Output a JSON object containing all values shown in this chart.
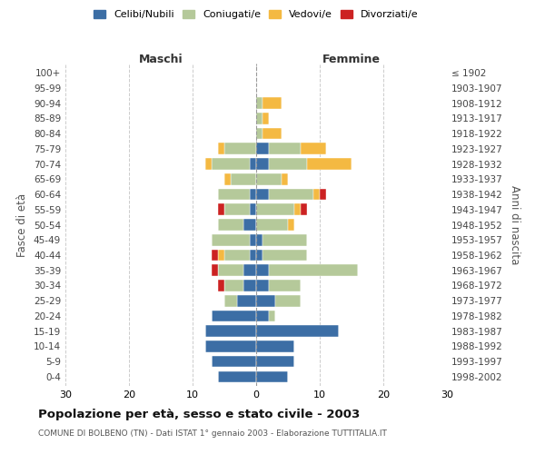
{
  "age_groups": [
    "0-4",
    "5-9",
    "10-14",
    "15-19",
    "20-24",
    "25-29",
    "30-34",
    "35-39",
    "40-44",
    "45-49",
    "50-54",
    "55-59",
    "60-64",
    "65-69",
    "70-74",
    "75-79",
    "80-84",
    "85-89",
    "90-94",
    "95-99",
    "100+"
  ],
  "birth_years": [
    "1998-2002",
    "1993-1997",
    "1988-1992",
    "1983-1987",
    "1978-1982",
    "1973-1977",
    "1968-1972",
    "1963-1967",
    "1958-1962",
    "1953-1957",
    "1948-1952",
    "1943-1947",
    "1938-1942",
    "1933-1937",
    "1928-1932",
    "1923-1927",
    "1918-1922",
    "1913-1917",
    "1908-1912",
    "1903-1907",
    "≤ 1902"
  ],
  "males": {
    "celibi": [
      6,
      7,
      8,
      8,
      7,
      3,
      2,
      2,
      1,
      1,
      2,
      1,
      1,
      0,
      1,
      0,
      0,
      0,
      0,
      0,
      0
    ],
    "coniugati": [
      0,
      0,
      0,
      0,
      0,
      2,
      3,
      4,
      4,
      6,
      4,
      4,
      5,
      4,
      6,
      5,
      0,
      0,
      0,
      0,
      0
    ],
    "vedovi": [
      0,
      0,
      0,
      0,
      0,
      0,
      0,
      0,
      1,
      0,
      0,
      0,
      0,
      1,
      1,
      1,
      0,
      0,
      0,
      0,
      0
    ],
    "divorziati": [
      0,
      0,
      0,
      0,
      0,
      0,
      1,
      1,
      1,
      0,
      0,
      1,
      0,
      0,
      0,
      0,
      0,
      0,
      0,
      0,
      0
    ]
  },
  "females": {
    "nubili": [
      5,
      6,
      6,
      13,
      2,
      3,
      2,
      2,
      1,
      1,
      0,
      0,
      2,
      0,
      2,
      2,
      0,
      0,
      0,
      0,
      0
    ],
    "coniugate": [
      0,
      0,
      0,
      0,
      1,
      4,
      5,
      14,
      7,
      7,
      5,
      6,
      7,
      4,
      6,
      5,
      1,
      1,
      1,
      0,
      0
    ],
    "vedove": [
      0,
      0,
      0,
      0,
      0,
      0,
      0,
      0,
      0,
      0,
      1,
      1,
      1,
      1,
      7,
      4,
      3,
      1,
      3,
      0,
      0
    ],
    "divorziate": [
      0,
      0,
      0,
      0,
      0,
      0,
      0,
      0,
      0,
      0,
      0,
      1,
      1,
      0,
      0,
      0,
      0,
      0,
      0,
      0,
      0
    ]
  },
  "colors": {
    "celibi_nubili": "#3c6ea5",
    "coniugati": "#b5c99a",
    "vedovi": "#f4b942",
    "divorziati": "#cc2222"
  },
  "xlim": 30,
  "title": "Popolazione per età, sesso e stato civile - 2003",
  "subtitle": "COMUNE DI BOLBENO (TN) - Dati ISTAT 1° gennaio 2003 - Elaborazione TUTTITALIA.IT",
  "ylabel_left": "Fasce di età",
  "ylabel_right": "Anni di nascita",
  "xlabel_left": "Maschi",
  "xlabel_right": "Femmine",
  "legend_labels": [
    "Celibi/Nubili",
    "Coniugati/e",
    "Vedovi/e",
    "Divorziati/e"
  ],
  "background_color": "#ffffff",
  "grid_color": "#cccccc"
}
